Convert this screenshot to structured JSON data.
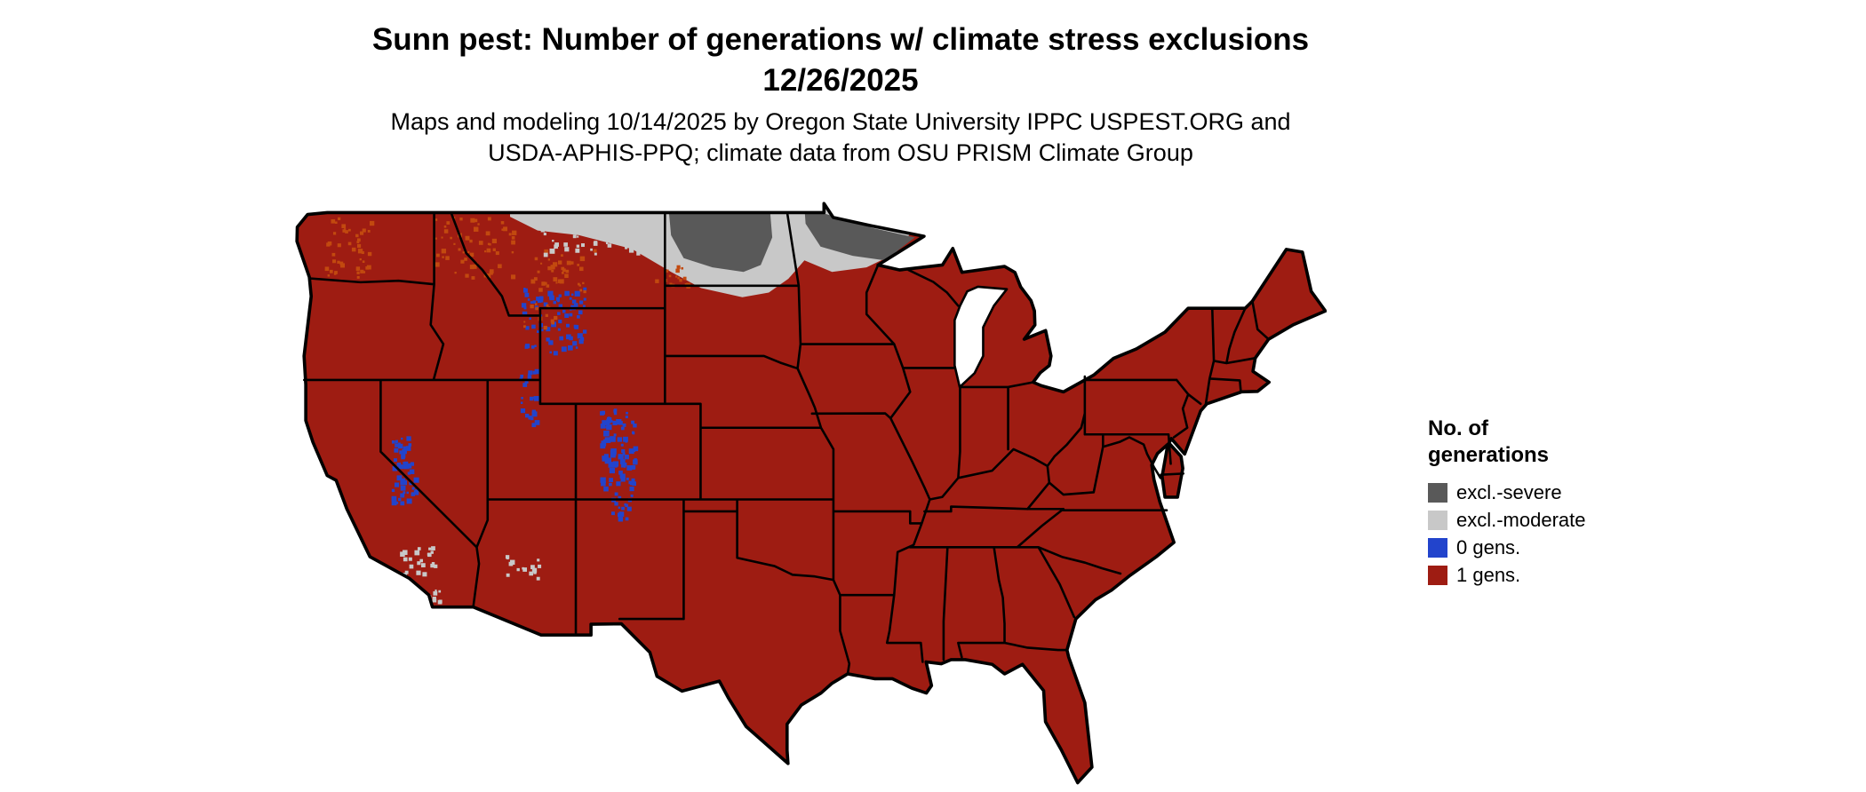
{
  "title": {
    "line1": "Sunn pest: Number of generations w/ climate stress exclusions",
    "line2": "12/26/2025"
  },
  "subtitle": {
    "line1": "Maps and modeling 10/14/2025 by Oregon State University IPPC USPEST.ORG and",
    "line2": "USDA-APHIS-PPQ; climate data from OSU PRISM Climate Group"
  },
  "legend": {
    "title_line1": "No. of",
    "title_line2": "generations",
    "items": [
      {
        "label": "excl.-severe",
        "color": "#595959"
      },
      {
        "label": "excl.-moderate",
        "color": "#c8c8c8"
      },
      {
        "label": "0 gens.",
        "color": "#2244cc"
      },
      {
        "label": "1 gens.",
        "color": "#9e1c12"
      }
    ]
  }
}
